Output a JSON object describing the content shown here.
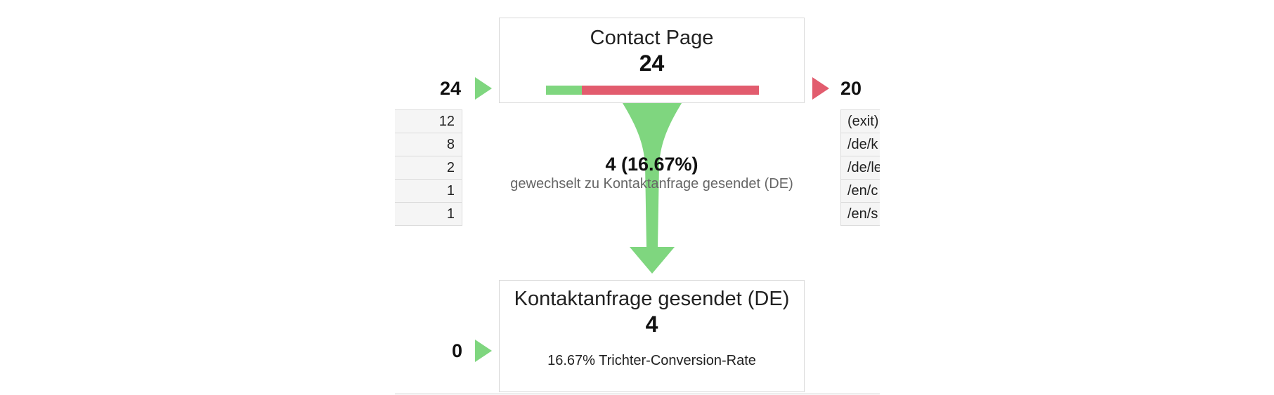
{
  "colors": {
    "green": "#7fd67f",
    "red": "#e25c6e"
  },
  "step1": {
    "title": "Contact Page",
    "count": "24",
    "entrances": "24",
    "exits": "20",
    "continue_fraction": 0.1667
  },
  "sources": [
    {
      "value": "12"
    },
    {
      "value": "8"
    },
    {
      "value": "2"
    },
    {
      "value": "1"
    },
    {
      "value": "1"
    }
  ],
  "destinations": [
    {
      "label": "(exit)"
    },
    {
      "label": "/de/k"
    },
    {
      "label": "/de/le"
    },
    {
      "label": "/en/c"
    },
    {
      "label": "/en/s"
    }
  ],
  "conversion": {
    "value": "4 (16.67%)",
    "label": "gewechselt zu Kontaktanfrage gesendet (DE)"
  },
  "step2": {
    "title": "Kontaktanfrage gesendet (DE)",
    "count": "4",
    "entrances": "0",
    "rate_text": "16.67% Trichter-Conversion-Rate"
  }
}
